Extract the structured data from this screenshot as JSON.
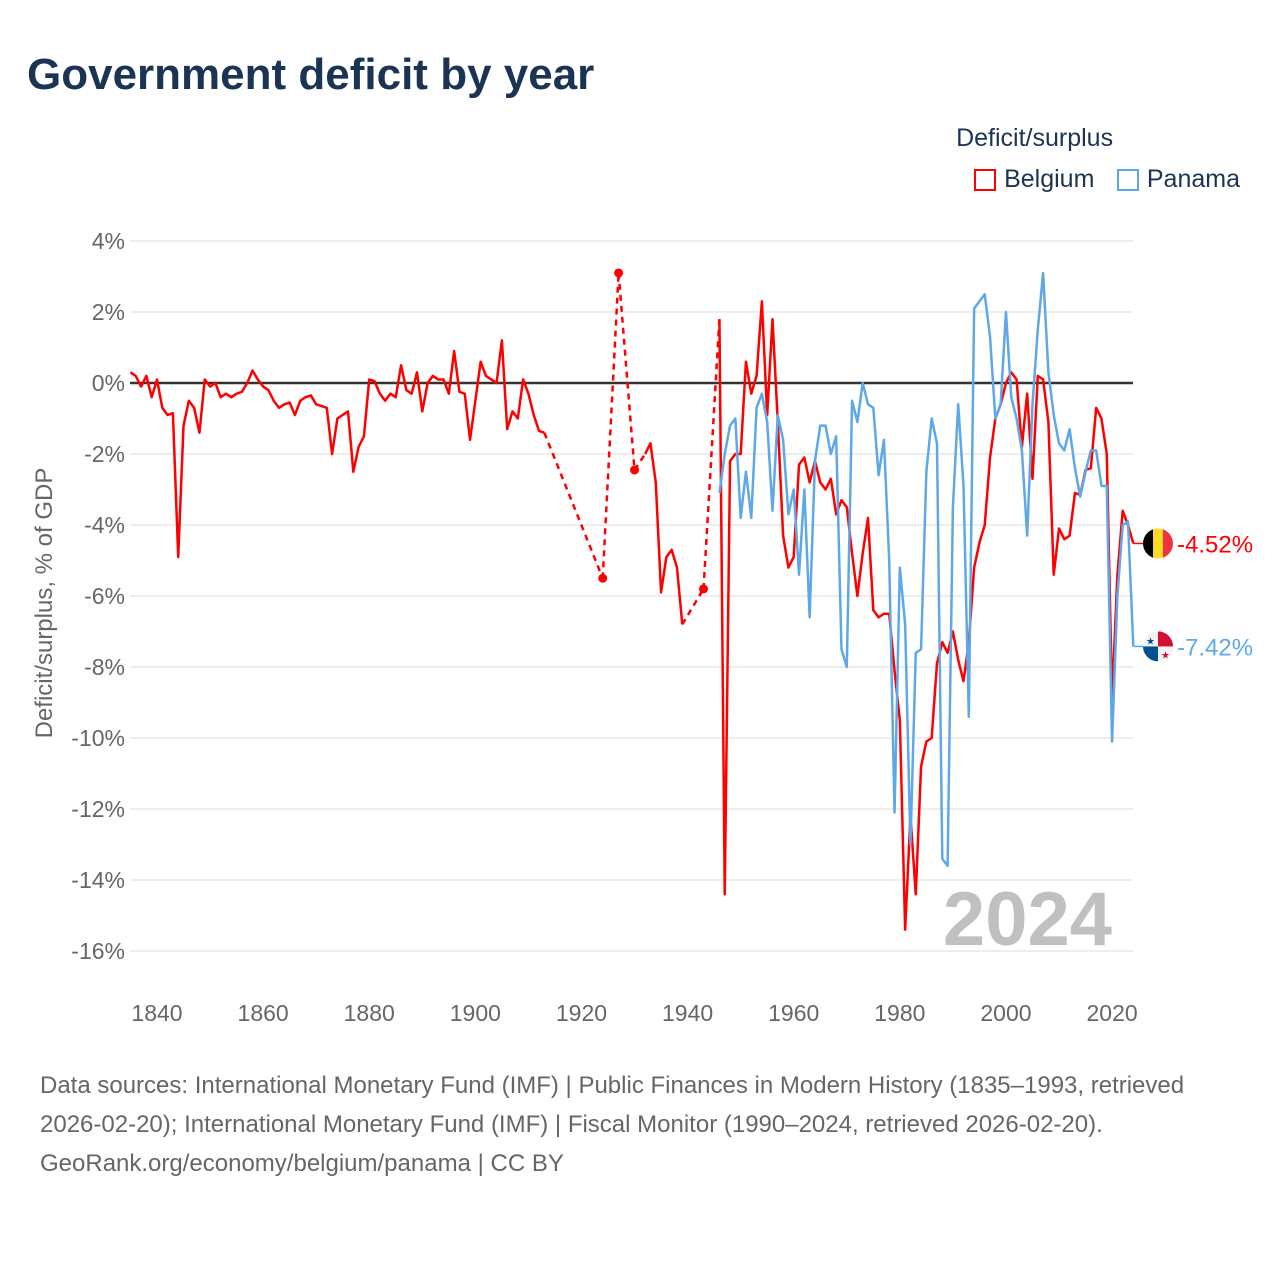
{
  "title": "Government deficit by year",
  "legend": {
    "title": "Deficit/surplus",
    "items": [
      {
        "label": "Belgium",
        "color": "#ff0000"
      },
      {
        "label": "Panama",
        "color": "#5fa8e8"
      }
    ]
  },
  "footer": {
    "sources": "Data sources: International Monetary Fund (IMF) | Public Finances in Modern History (1835–1993, retrieved 2026-02-20); International Monetary Fund (IMF) | Fiscal Monitor (1990–2024, retrieved 2026-02-20).",
    "credit": "GeoRank.org/economy/belgium/panama | CC BY"
  },
  "chart_data": {
    "type": "line",
    "title": "Government deficit by year",
    "xlabel": "",
    "ylabel": "Deficit/surplus, % of GDP",
    "xlim": [
      1835,
      2024
    ],
    "ylim": [
      -16,
      4
    ],
    "x_ticks": [
      1840,
      1860,
      1880,
      1900,
      1920,
      1940,
      1960,
      1980,
      2000,
      2020
    ],
    "y_ticks": [
      4,
      2,
      0,
      -2,
      -4,
      -6,
      -8,
      -10,
      -12,
      -14,
      -16
    ],
    "y_tick_labels": [
      "4%",
      "2%",
      "0%",
      "-2%",
      "-4%",
      "-6%",
      "-8%",
      "-10%",
      "-12%",
      "-14%",
      "-16%"
    ],
    "year_watermark": "2024",
    "legend_position": "top-right",
    "series": [
      {
        "name": "Belgium",
        "color": "#ff0000",
        "end_label": "-4.52%",
        "points": [
          [
            1835,
            0.3
          ],
          [
            1836,
            0.2
          ],
          [
            1837,
            -0.1
          ],
          [
            1838,
            0.2
          ],
          [
            1839,
            -0.4
          ],
          [
            1840,
            0.1
          ],
          [
            1841,
            -0.7
          ],
          [
            1842,
            -0.9
          ],
          [
            1843,
            -0.85
          ],
          [
            1844,
            -4.9
          ],
          [
            1845,
            -1.2
          ],
          [
            1846,
            -0.5
          ],
          [
            1847,
            -0.7
          ],
          [
            1848,
            -1.4
          ],
          [
            1849,
            0.1
          ],
          [
            1850,
            -0.1
          ],
          [
            1851,
            0
          ],
          [
            1852,
            -0.4
          ],
          [
            1853,
            -0.3
          ],
          [
            1854,
            -0.4
          ],
          [
            1855,
            -0.3
          ],
          [
            1856,
            -0.25
          ],
          [
            1857,
            0
          ],
          [
            1858,
            0.35
          ],
          [
            1859,
            0.1
          ],
          [
            1860,
            -0.1
          ],
          [
            1861,
            -0.2
          ],
          [
            1862,
            -0.5
          ],
          [
            1863,
            -0.7
          ],
          [
            1864,
            -0.6
          ],
          [
            1865,
            -0.55
          ],
          [
            1866,
            -0.9
          ],
          [
            1867,
            -0.5
          ],
          [
            1868,
            -0.4
          ],
          [
            1869,
            -0.35
          ],
          [
            1870,
            -0.6
          ],
          [
            1871,
            -0.65
          ],
          [
            1872,
            -0.7
          ],
          [
            1873,
            -2.0
          ],
          [
            1874,
            -1.0
          ],
          [
            1875,
            -0.9
          ],
          [
            1876,
            -0.8
          ],
          [
            1877,
            -2.5
          ],
          [
            1878,
            -1.8
          ],
          [
            1879,
            -1.5
          ],
          [
            1880,
            0.1
          ],
          [
            1881,
            0.05
          ],
          [
            1882,
            -0.3
          ],
          [
            1883,
            -0.5
          ],
          [
            1884,
            -0.3
          ],
          [
            1885,
            -0.4
          ],
          [
            1886,
            0.5
          ],
          [
            1887,
            -0.2
          ],
          [
            1888,
            -0.3
          ],
          [
            1889,
            0.3
          ],
          [
            1890,
            -0.8
          ],
          [
            1891,
            0
          ],
          [
            1892,
            0.2
          ],
          [
            1893,
            0.1
          ],
          [
            1894,
            0.1
          ],
          [
            1895,
            -0.3
          ],
          [
            1896,
            0.9
          ],
          [
            1897,
            -0.25
          ],
          [
            1898,
            -0.3
          ],
          [
            1899,
            -1.6
          ],
          [
            1900,
            -0.5
          ],
          [
            1901,
            0.6
          ],
          [
            1902,
            0.2
          ],
          [
            1903,
            0.1
          ],
          [
            1904,
            0
          ],
          [
            1905,
            1.2
          ],
          [
            1906,
            -1.3
          ],
          [
            1907,
            -0.8
          ],
          [
            1908,
            -1.0
          ],
          [
            1909,
            0.1
          ],
          [
            1910,
            -0.3
          ],
          [
            1911,
            -0.9
          ],
          [
            1912,
            -1.35
          ],
          [
            1913,
            -1.4
          ],
          [
            1924,
            -5.5
          ],
          [
            1927,
            3.1
          ],
          [
            1930,
            -2.45
          ],
          [
            1932,
            -2.0
          ],
          [
            1933,
            -1.7
          ],
          [
            1934,
            -2.8
          ],
          [
            1935,
            -5.9
          ],
          [
            1936,
            -4.9
          ],
          [
            1937,
            -4.7
          ],
          [
            1938,
            -5.2
          ],
          [
            1939,
            -6.8
          ],
          [
            1943,
            -5.8
          ],
          [
            1946,
            1.8
          ],
          [
            1947,
            -14.4
          ],
          [
            1948,
            -2.2
          ],
          [
            1949,
            -2.0
          ],
          [
            1950,
            -2.0
          ],
          [
            1951,
            0.6
          ],
          [
            1952,
            -0.3
          ],
          [
            1953,
            0.2
          ],
          [
            1954,
            2.3
          ],
          [
            1955,
            -0.9
          ],
          [
            1956,
            1.8
          ],
          [
            1957,
            -1.1
          ],
          [
            1958,
            -4.3
          ],
          [
            1959,
            -5.2
          ],
          [
            1960,
            -4.9
          ],
          [
            1961,
            -2.3
          ],
          [
            1962,
            -2.1
          ],
          [
            1963,
            -2.8
          ],
          [
            1964,
            -2.2
          ],
          [
            1965,
            -2.8
          ],
          [
            1966,
            -3.0
          ],
          [
            1967,
            -2.7
          ],
          [
            1968,
            -3.7
          ],
          [
            1969,
            -3.3
          ],
          [
            1970,
            -3.5
          ],
          [
            1971,
            -4.8
          ],
          [
            1972,
            -6.0
          ],
          [
            1973,
            -4.8
          ],
          [
            1974,
            -3.8
          ],
          [
            1975,
            -6.4
          ],
          [
            1976,
            -6.6
          ],
          [
            1977,
            -6.5
          ],
          [
            1978,
            -6.5
          ],
          [
            1979,
            -8.1
          ],
          [
            1980,
            -9.5
          ],
          [
            1981,
            -15.4
          ],
          [
            1982,
            -12.2
          ],
          [
            1983,
            -14.4
          ],
          [
            1984,
            -10.8
          ],
          [
            1985,
            -10.1
          ],
          [
            1986,
            -10.0
          ],
          [
            1987,
            -7.9
          ],
          [
            1988,
            -7.3
          ],
          [
            1989,
            -7.6
          ],
          [
            1990,
            -7.0
          ],
          [
            1991,
            -7.8
          ],
          [
            1992,
            -8.4
          ],
          [
            1993,
            -7.3
          ],
          [
            1994,
            -5.2
          ],
          [
            1995,
            -4.5
          ],
          [
            1996,
            -4.0
          ],
          [
            1997,
            -2.1
          ],
          [
            1998,
            -1.0
          ],
          [
            1999,
            -0.6
          ],
          [
            2000,
            0
          ],
          [
            2001,
            0.3
          ],
          [
            2002,
            0.1
          ],
          [
            2003,
            -1.8
          ],
          [
            2004,
            -0.3
          ],
          [
            2005,
            -2.7
          ],
          [
            2006,
            0.2
          ],
          [
            2007,
            0.1
          ],
          [
            2008,
            -1.1
          ],
          [
            2009,
            -5.4
          ],
          [
            2010,
            -4.1
          ],
          [
            2011,
            -4.4
          ],
          [
            2012,
            -4.3
          ],
          [
            2013,
            -3.1
          ],
          [
            2014,
            -3.15
          ],
          [
            2015,
            -2.45
          ],
          [
            2016,
            -2.4
          ],
          [
            2017,
            -0.7
          ],
          [
            2018,
            -1.0
          ],
          [
            2019,
            -2.0
          ],
          [
            2020,
            -8.9
          ],
          [
            2021,
            -5.4
          ],
          [
            2022,
            -3.6
          ],
          [
            2023,
            -4.0
          ],
          [
            2024,
            -4.52
          ]
        ]
      },
      {
        "name": "Panama",
        "color": "#5fa8e8",
        "end_label": "-7.42%",
        "points": [
          [
            1946,
            -3.1
          ],
          [
            1947,
            -2.0
          ],
          [
            1948,
            -1.2
          ],
          [
            1949,
            -1.0
          ],
          [
            1950,
            -3.8
          ],
          [
            1951,
            -2.5
          ],
          [
            1952,
            -3.8
          ],
          [
            1953,
            -0.7
          ],
          [
            1954,
            -0.3
          ],
          [
            1955,
            -1.1
          ],
          [
            1956,
            -3.6
          ],
          [
            1957,
            -0.9
          ],
          [
            1958,
            -1.6
          ],
          [
            1959,
            -3.7
          ],
          [
            1960,
            -3.0
          ],
          [
            1961,
            -5.4
          ],
          [
            1962,
            -3.0
          ],
          [
            1963,
            -6.6
          ],
          [
            1964,
            -2.2
          ],
          [
            1965,
            -1.2
          ],
          [
            1966,
            -1.2
          ],
          [
            1967,
            -2.0
          ],
          [
            1968,
            -1.5
          ],
          [
            1969,
            -7.5
          ],
          [
            1970,
            -8.0
          ],
          [
            1971,
            -0.5
          ],
          [
            1972,
            -1.1
          ],
          [
            1973,
            0
          ],
          [
            1974,
            -0.6
          ],
          [
            1975,
            -0.7
          ],
          [
            1976,
            -2.6
          ],
          [
            1977,
            -1.6
          ],
          [
            1978,
            -5.0
          ],
          [
            1979,
            -12.1
          ],
          [
            1980,
            -5.2
          ],
          [
            1981,
            -6.8
          ],
          [
            1982,
            -13.0
          ],
          [
            1983,
            -7.6
          ],
          [
            1984,
            -7.5
          ],
          [
            1985,
            -2.5
          ],
          [
            1986,
            -1.0
          ],
          [
            1987,
            -1.7
          ],
          [
            1988,
            -13.4
          ],
          [
            1989,
            -13.6
          ],
          [
            1990,
            -3.5
          ],
          [
            1991,
            -0.6
          ],
          [
            1992,
            -2.9
          ],
          [
            1993,
            -9.4
          ],
          [
            1994,
            2.1
          ],
          [
            1995,
            2.3
          ],
          [
            1996,
            2.5
          ],
          [
            1997,
            1.3
          ],
          [
            1998,
            -1.0
          ],
          [
            1999,
            -0.6
          ],
          [
            2000,
            2.0
          ],
          [
            2001,
            -0.4
          ],
          [
            2002,
            -1.0
          ],
          [
            2003,
            -1.9
          ],
          [
            2004,
            -4.3
          ],
          [
            2005,
            -0.6
          ],
          [
            2006,
            1.5
          ],
          [
            2007,
            3.1
          ],
          [
            2008,
            0.3
          ],
          [
            2009,
            -0.9
          ],
          [
            2010,
            -1.7
          ],
          [
            2011,
            -1.9
          ],
          [
            2012,
            -1.3
          ],
          [
            2013,
            -2.4
          ],
          [
            2014,
            -3.2
          ],
          [
            2015,
            -2.5
          ],
          [
            2016,
            -1.9
          ],
          [
            2017,
            -1.9
          ],
          [
            2018,
            -2.9
          ],
          [
            2019,
            -2.9
          ],
          [
            2020,
            -10.1
          ],
          [
            2021,
            -6.0
          ],
          [
            2022,
            -4.0
          ],
          [
            2023,
            -3.9
          ],
          [
            2024,
            -7.42
          ]
        ]
      }
    ]
  }
}
